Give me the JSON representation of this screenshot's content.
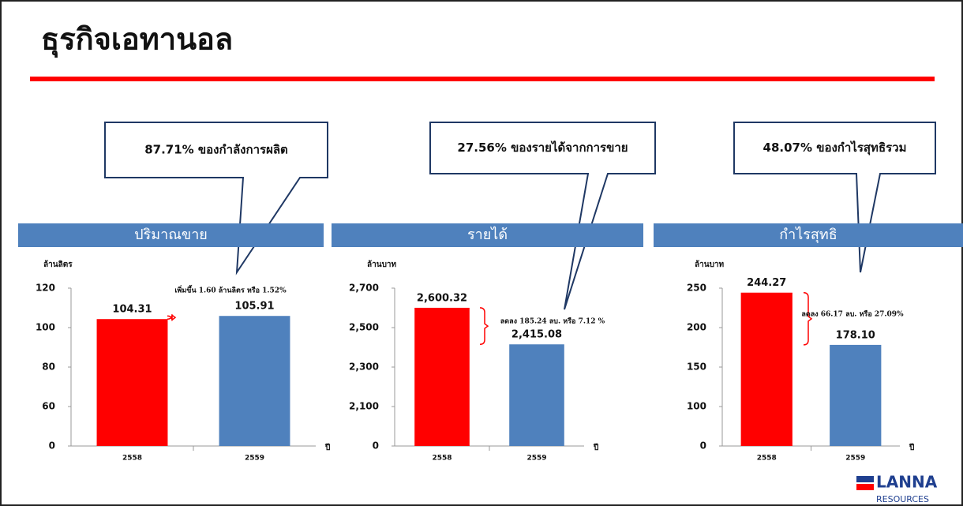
{
  "slide_title": "ธุรกิจเอทานอล",
  "logo": {
    "name": "LANNA",
    "sub": "RESOURCES"
  },
  "chart_data": [
    {
      "type": "bar",
      "header": "ปริมาณขาย",
      "callout": "87.71% ของกำลังการผลิต",
      "y_label": "ล้านลิตร",
      "x_label": "ปี",
      "annotation": "เพิ่มขึ้น 1.60 ล้านลิตร หรือ 1.52%",
      "categories": [
        "2558",
        "2559"
      ],
      "values": [
        104.31,
        105.91
      ],
      "value_labels": [
        "104.31",
        "105.91"
      ],
      "colors": [
        "#ff0000",
        "#4f81bd"
      ],
      "ylim": [
        0,
        120
      ],
      "yticks": [
        0,
        60,
        80,
        100,
        120
      ],
      "y_axis_break": true,
      "grid": false
    },
    {
      "type": "bar",
      "header": "รายได้",
      "callout": "27.56% ของรายได้จากการขาย",
      "y_label": "ล้านบาท",
      "x_label": "ปี",
      "annotation": "ลดลง 185.24 ลบ. หรือ 7.12 %",
      "categories": [
        "2558",
        "2559"
      ],
      "values": [
        2600.32,
        2415.08
      ],
      "value_labels": [
        "2,600.32",
        "2,415.08"
      ],
      "colors": [
        "#ff0000",
        "#4f81bd"
      ],
      "ylim": [
        0,
        2700
      ],
      "yticks": [
        0,
        {
          "value": 2100,
          "label": "2,100"
        },
        {
          "value": 2300,
          "label": "2,300"
        },
        {
          "value": 2500,
          "label": "2,500"
        },
        {
          "value": 2700,
          "label": "2,700"
        }
      ],
      "y_axis_break": true,
      "grid": false
    },
    {
      "type": "bar",
      "header": "กำไรสุทธิ",
      "callout": "48.07% ของกำไรสุทธิรวม",
      "y_label": "ล้านบาท",
      "x_label": "ปี",
      "annotation": "ลดลง 66.17 ลบ. หรือ 27.09%",
      "categories": [
        "2558",
        "2559"
      ],
      "values": [
        244.27,
        178.1
      ],
      "value_labels": [
        "244.27",
        "178.10"
      ],
      "colors": [
        "#ff0000",
        "#4f81bd"
      ],
      "ylim": [
        0,
        250
      ],
      "yticks": [
        0,
        100,
        150,
        200,
        250
      ],
      "y_axis_break": true,
      "grid": false
    }
  ]
}
